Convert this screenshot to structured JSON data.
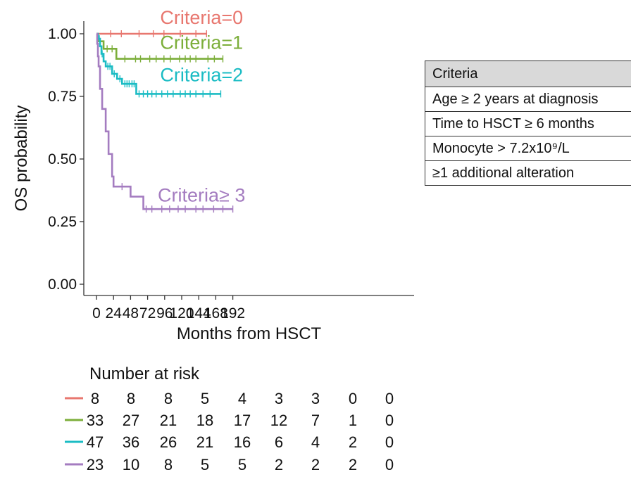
{
  "chart_data": {
    "type": "line",
    "subtype": "kaplan-meier",
    "title": "",
    "xlabel": "Months from HSCT",
    "ylabel": "OS probability",
    "xlim": [
      -8,
      210
    ],
    "ylim": [
      0,
      1.0
    ],
    "x_ticks": [
      0,
      24,
      48,
      72,
      96,
      120,
      144,
      168,
      192
    ],
    "y_ticks": [
      0.0,
      0.25,
      0.5,
      0.75,
      1.0
    ],
    "y_tick_labels": [
      "0.00",
      "0.25",
      "0.50",
      "0.75",
      "1.00"
    ],
    "grid": false,
    "series": [
      {
        "name": "Criteria=0",
        "color": "#E8776F",
        "steps": [
          [
            0,
            1.0
          ],
          [
            155,
            1.0
          ]
        ],
        "censor_times": [
          20,
          35,
          60,
          80,
          95,
          118,
          140,
          155
        ],
        "label_x": 148,
        "label_y": 1.04
      },
      {
        "name": "Criteria=1",
        "color": "#7CAE3A",
        "steps": [
          [
            0,
            1.0
          ],
          [
            2,
            0.97
          ],
          [
            10,
            0.94
          ],
          [
            28,
            0.9
          ],
          [
            178,
            0.9
          ]
        ],
        "censor_times": [
          5,
          15,
          22,
          40,
          55,
          62,
          75,
          84,
          95,
          104,
          117,
          125,
          132,
          140,
          157,
          166,
          178
        ],
        "label_x": 148,
        "label_y": 0.94
      },
      {
        "name": "Criteria=2",
        "color": "#1BBCC4",
        "steps": [
          [
            0,
            1.0
          ],
          [
            2,
            0.98
          ],
          [
            5,
            0.95
          ],
          [
            7,
            0.92
          ],
          [
            10,
            0.89
          ],
          [
            13,
            0.87
          ],
          [
            22,
            0.84
          ],
          [
            29,
            0.82
          ],
          [
            36,
            0.8
          ],
          [
            56,
            0.76
          ],
          [
            175,
            0.76
          ]
        ],
        "censor_times": [
          4,
          8,
          16,
          19,
          25,
          33,
          40,
          43,
          46,
          50,
          53,
          60,
          66,
          72,
          78,
          84,
          92,
          100,
          108,
          118,
          125,
          132,
          140,
          150,
          160,
          175
        ],
        "label_x": 148,
        "label_y": 0.81
      },
      {
        "name": "Criteria≥ 3",
        "color": "#A47CC0",
        "steps": [
          [
            0,
            1.0
          ],
          [
            1,
            0.96
          ],
          [
            2,
            0.91
          ],
          [
            3,
            0.87
          ],
          [
            5,
            0.78
          ],
          [
            8,
            0.7
          ],
          [
            13,
            0.61
          ],
          [
            17,
            0.52
          ],
          [
            22,
            0.43
          ],
          [
            24,
            0.39
          ],
          [
            48,
            0.35
          ],
          [
            66,
            0.3
          ],
          [
            192,
            0.3
          ]
        ],
        "censor_times": [
          36,
          70,
          78,
          92,
          103,
          115,
          125,
          140,
          150,
          165,
          178,
          192
        ],
        "label_x": 148,
        "label_y": 0.33
      }
    ]
  },
  "risk_table": {
    "title": "Number at risk",
    "rows": [
      {
        "color": "#E8776F",
        "values": [
          "8",
          "8",
          "8",
          "5",
          "4",
          "3",
          "3",
          "0",
          "0"
        ]
      },
      {
        "color": "#7CAE3A",
        "values": [
          "33",
          "27",
          "21",
          "18",
          "17",
          "12",
          "7",
          "1",
          "0"
        ]
      },
      {
        "color": "#1BBCC4",
        "values": [
          "47",
          "36",
          "26",
          "21",
          "16",
          "6",
          "4",
          "2",
          "0"
        ]
      },
      {
        "color": "#A47CC0",
        "values": [
          "23",
          "10",
          "8",
          "5",
          "5",
          "2",
          "2",
          "2",
          "0"
        ]
      }
    ]
  },
  "criteria_table": {
    "header": "Criteria",
    "rows": [
      "Age ≥ 2 years at diagnosis",
      "Time to HSCT ≥ 6 months",
      "Monocyte > 7.2x10⁹/L",
      "≥1 additional alteration"
    ]
  }
}
